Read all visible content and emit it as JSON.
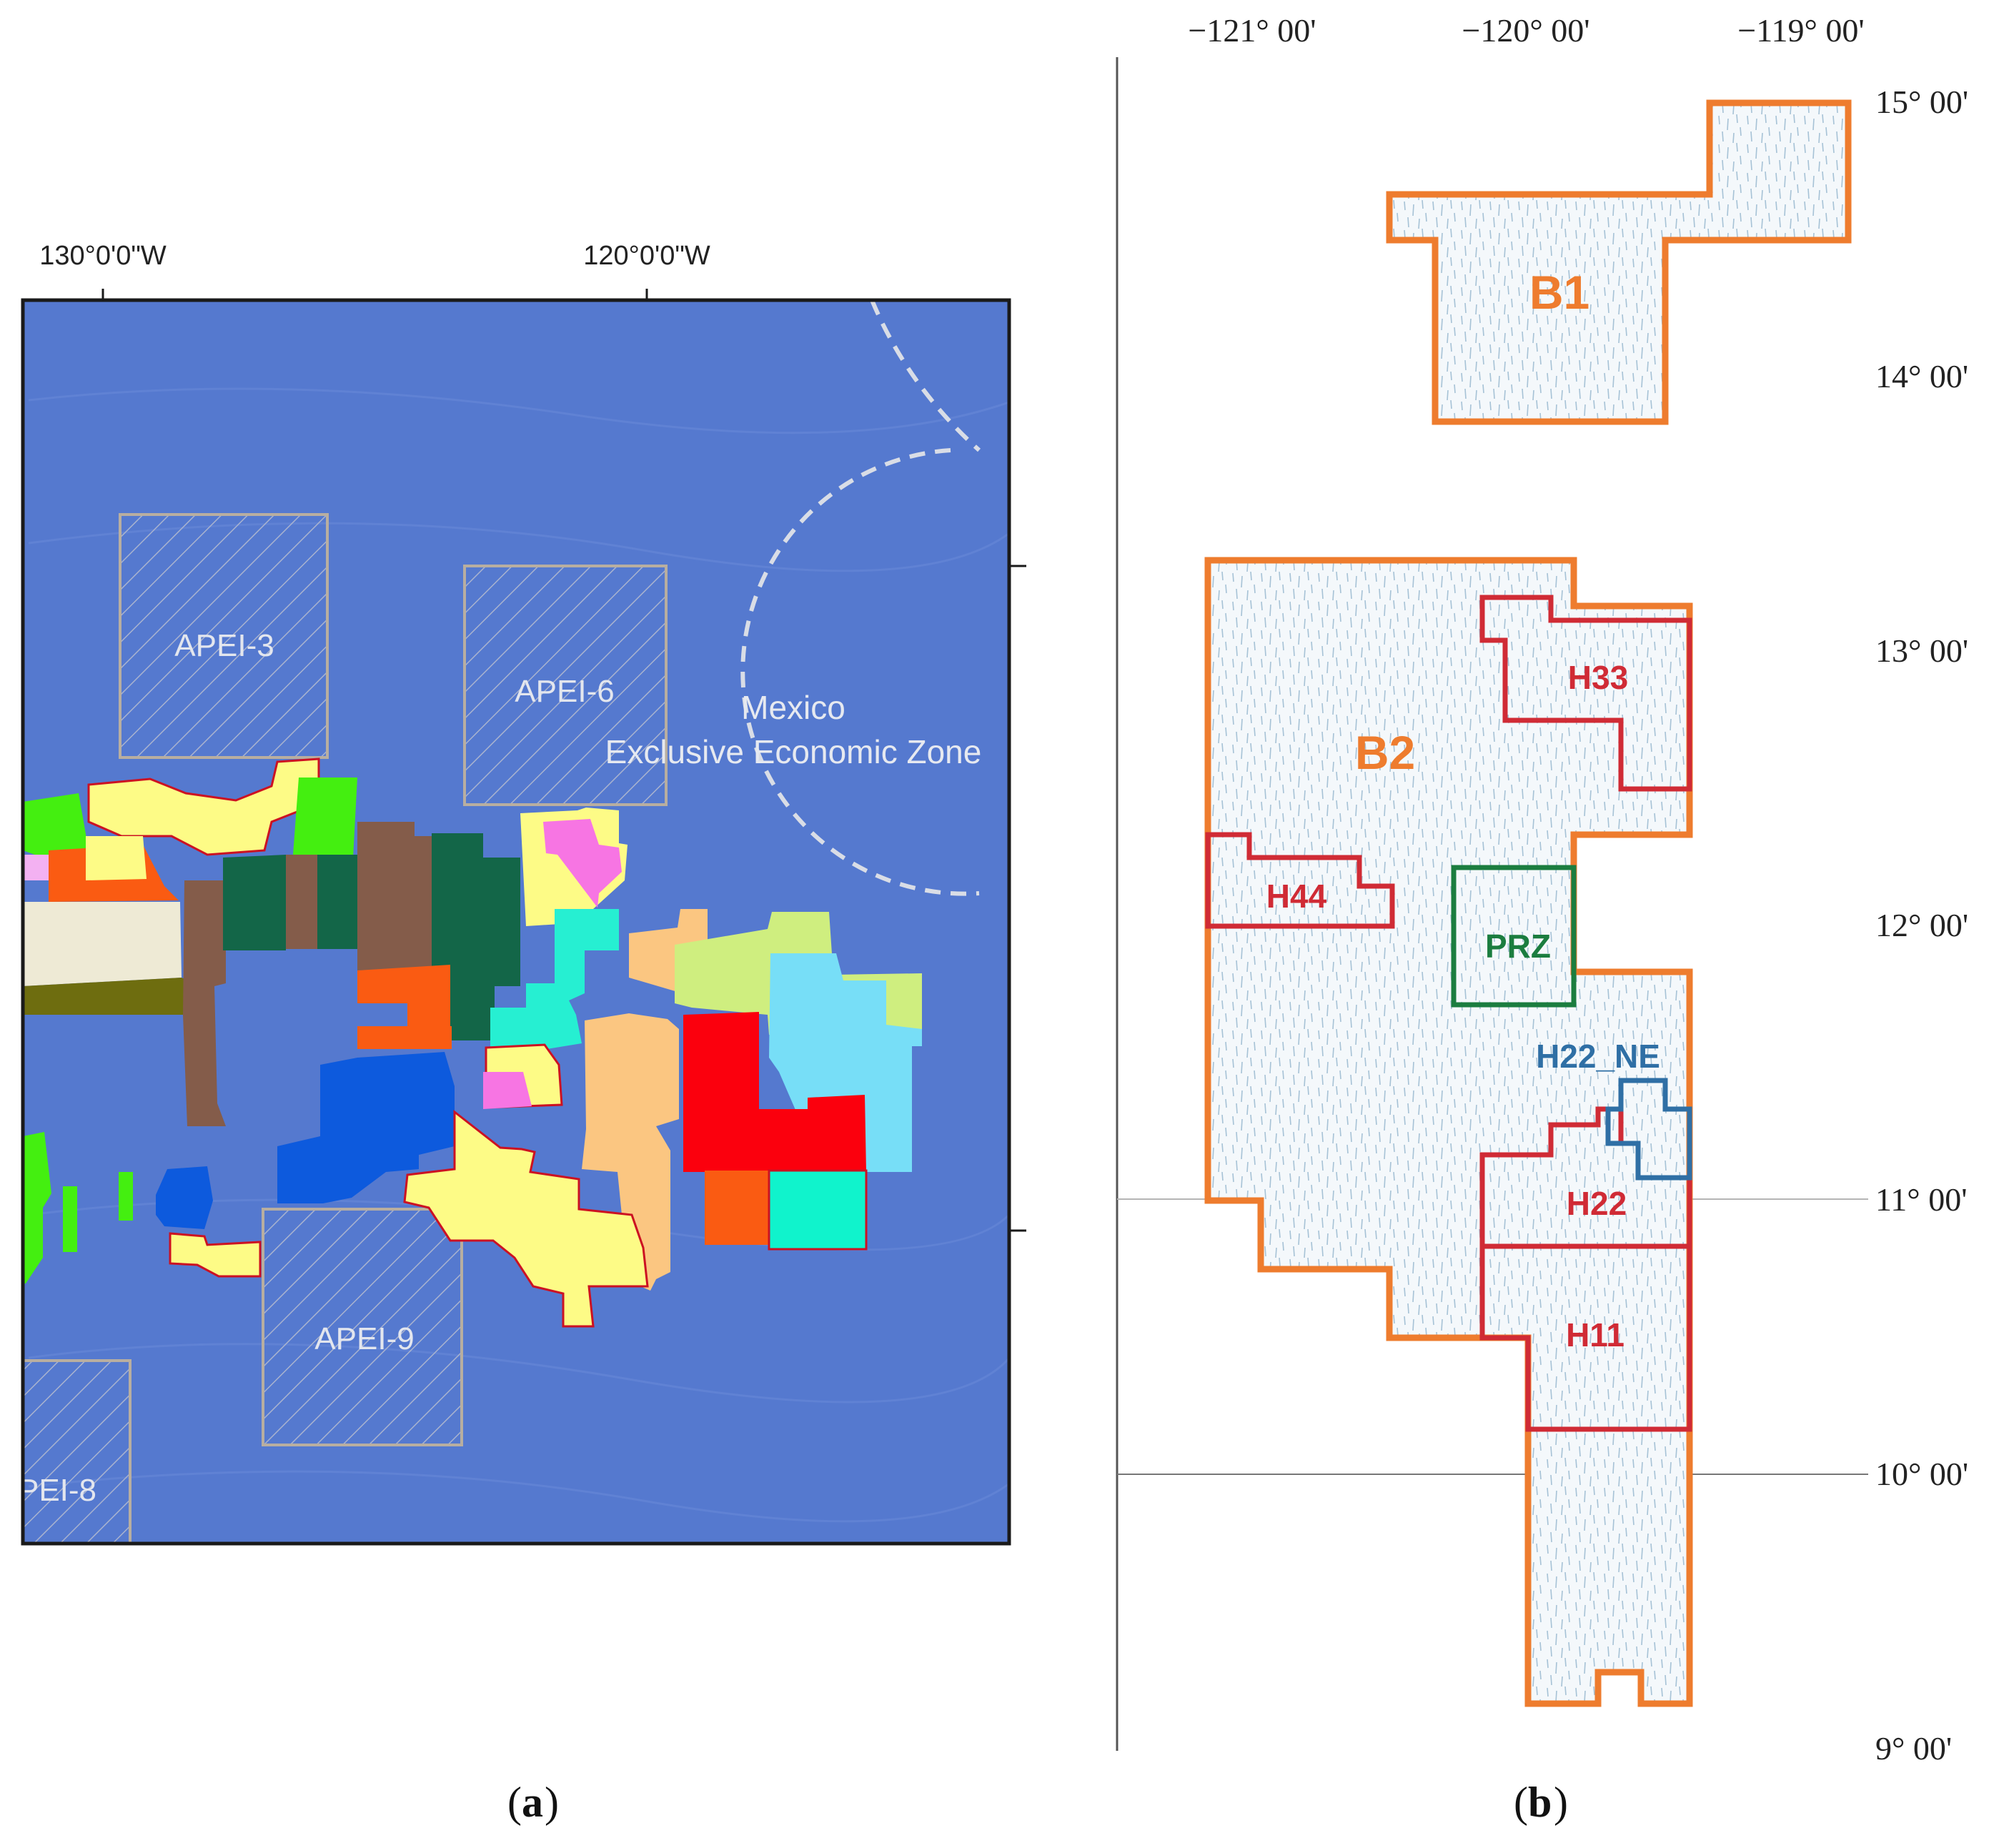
{
  "panel_a": {
    "caption_open": "(",
    "caption_letter": "a",
    "caption_close": ")",
    "lon_labels": [
      "130°0'0\"W",
      "120°0'0\"W"
    ],
    "apei_labels": [
      "APEI-3",
      "APEI-6",
      "APEI-9",
      "PEI-8"
    ],
    "eez_label_line1": "Mexico",
    "eez_label_line2": "Exclusive Economic Zone",
    "colors": {
      "ocean": "#5579cf",
      "apei_outline": "#b8aea0",
      "eez_dash": "#d9dde6",
      "yellow": "#fdfb86",
      "green": "#44ef10",
      "orange": "#fa5b12",
      "cream": "#eeead5",
      "olive": "#6e6d0f",
      "brown": "#845c4a",
      "dark_green": "#136648",
      "pink": "#f775e3",
      "aqua": "#26efd2",
      "peach": "#fbc681",
      "light_green": "#cfee7f",
      "sky": "#77def7",
      "red": "#fb000d",
      "mint": "#10f3cc",
      "blue": "#0d5add",
      "lilac": "#f3b1f2"
    }
  },
  "panel_b": {
    "caption_open": "(",
    "caption_letter": "b",
    "caption_close": ")",
    "lon_labels": [
      "−121° 00'",
      "−120° 00'",
      "−119° 00'"
    ],
    "lat_labels": [
      "15° 00'",
      "14° 00'",
      "13° 00'",
      "12° 00'",
      "11° 00'",
      "10° 00'",
      "9° 00'"
    ],
    "areas": [
      {
        "name": "B1",
        "color": "#ee7c2e"
      },
      {
        "name": "B2",
        "color": "#ee7c2e"
      },
      {
        "name": "H33",
        "color": "#d02b35"
      },
      {
        "name": "H44",
        "color": "#d02b35"
      },
      {
        "name": "PRZ",
        "color": "#1b7d3f"
      },
      {
        "name": "H22_NE",
        "color": "#2f6fa5"
      },
      {
        "name": "H22",
        "color": "#d02b35"
      },
      {
        "name": "H11",
        "color": "#d02b35"
      }
    ]
  }
}
